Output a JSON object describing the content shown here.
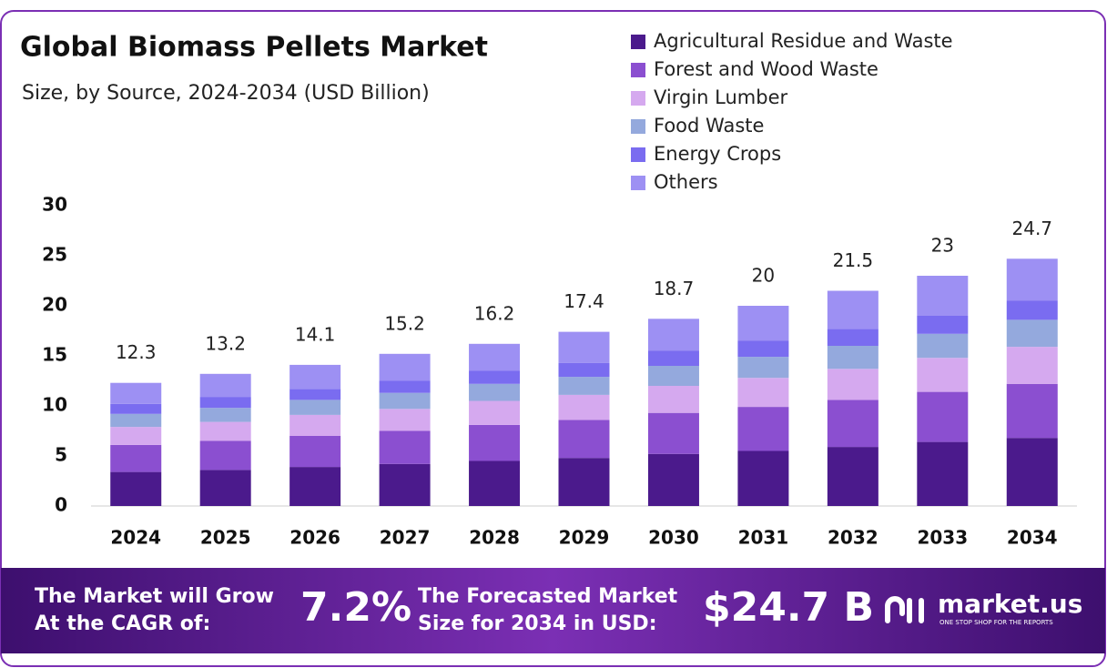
{
  "chart_data": {
    "type": "stacked-bar",
    "title": "Global Biomass Pellets Market",
    "subtitle": "Size, by Source, 2024-2034 (USD Billion)",
    "categories": [
      "2024",
      "2025",
      "2026",
      "2027",
      "2028",
      "2029",
      "2030",
      "2031",
      "2032",
      "2033",
      "2034"
    ],
    "series": [
      {
        "name": "Agricultural Residue and Waste",
        "color": "#4b1a8c",
        "values": [
          3.4,
          3.6,
          3.9,
          4.2,
          4.5,
          4.8,
          5.2,
          5.5,
          5.9,
          6.4,
          6.8
        ]
      },
      {
        "name": "Forest and Wood Waste",
        "color": "#8b4fd0",
        "values": [
          2.7,
          2.9,
          3.1,
          3.3,
          3.6,
          3.8,
          4.1,
          4.4,
          4.7,
          5.0,
          5.4
        ]
      },
      {
        "name": "Virgin Lumber",
        "color": "#d5a9ef",
        "values": [
          1.8,
          1.9,
          2.1,
          2.2,
          2.4,
          2.5,
          2.7,
          2.9,
          3.1,
          3.4,
          3.7
        ]
      },
      {
        "name": "Food Waste",
        "color": "#94a9dd",
        "values": [
          1.3,
          1.4,
          1.5,
          1.6,
          1.7,
          1.8,
          2.0,
          2.1,
          2.3,
          2.4,
          2.7
        ]
      },
      {
        "name": "Energy Crops",
        "color": "#7a6cf0",
        "values": [
          1.0,
          1.1,
          1.1,
          1.2,
          1.3,
          1.4,
          1.5,
          1.6,
          1.7,
          1.8,
          1.9
        ]
      },
      {
        "name": "Others",
        "color": "#9d90f3",
        "values": [
          2.1,
          2.3,
          2.4,
          2.7,
          2.7,
          3.1,
          3.2,
          3.5,
          3.8,
          4.0,
          4.2
        ]
      }
    ],
    "totals": [
      12.3,
      13.2,
      14.1,
      15.2,
      16.2,
      17.4,
      18.7,
      20.0,
      21.5,
      23.0,
      24.7
    ],
    "ylim": [
      0,
      30
    ],
    "yticks": [
      0,
      5,
      10,
      15,
      20,
      25,
      30
    ],
    "grid": false,
    "legend": "top-right"
  },
  "footer": {
    "cagr_label": [
      "The Market will Grow",
      "At the CAGR of:"
    ],
    "cagr_value": "7.2%",
    "forecast_label": [
      "The Forecasted Market",
      "Size for 2034 in USD:"
    ],
    "forecast_value": "$24.7 B",
    "brand": "market.us",
    "tagline": "ONE STOP SHOP FOR THE REPORTS"
  }
}
